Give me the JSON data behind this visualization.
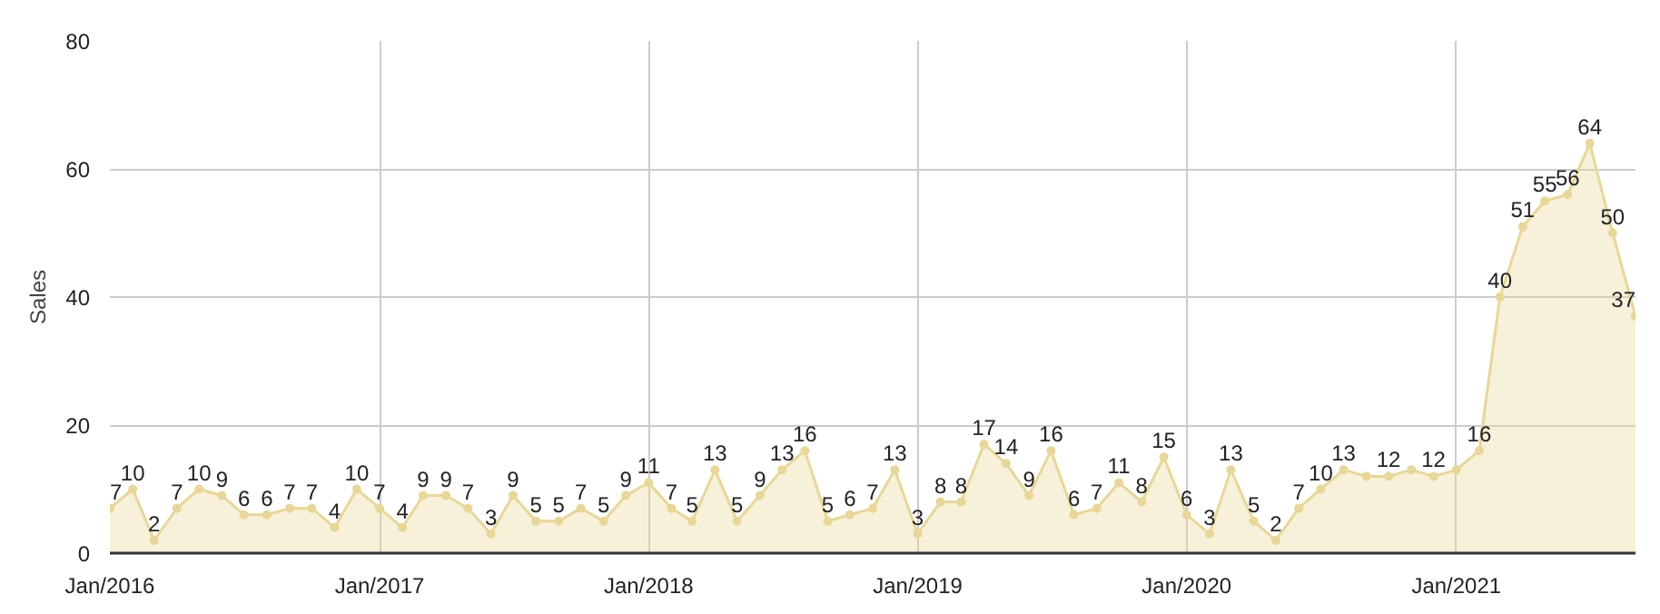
{
  "chart_data": {
    "type": "area",
    "ylabel": "Sales",
    "x": [
      "2016-01",
      "2016-02",
      "2016-03",
      "2016-04",
      "2016-05",
      "2016-06",
      "2016-07",
      "2016-08",
      "2016-09",
      "2016-10",
      "2016-11",
      "2016-12",
      "2017-01",
      "2017-02",
      "2017-03",
      "2017-04",
      "2017-05",
      "2017-06",
      "2017-07",
      "2017-08",
      "2017-09",
      "2017-10",
      "2017-11",
      "2017-12",
      "2018-01",
      "2018-02",
      "2018-03",
      "2018-04",
      "2018-05",
      "2018-06",
      "2018-07",
      "2018-08",
      "2018-09",
      "2018-10",
      "2018-11",
      "2018-12",
      "2019-01",
      "2019-02",
      "2019-03",
      "2019-04",
      "2019-05",
      "2019-06",
      "2019-07",
      "2019-08",
      "2019-09",
      "2019-10",
      "2019-11",
      "2019-12",
      "2020-01",
      "2020-02",
      "2020-03",
      "2020-04",
      "2020-05",
      "2020-06",
      "2020-07",
      "2020-08",
      "2020-09",
      "2020-10",
      "2020-11",
      "2020-12",
      "2021-01",
      "2021-02",
      "2021-03",
      "2021-04",
      "2021-05",
      "2021-06",
      "2021-07",
      "2021-08",
      "2021-09"
    ],
    "series": [
      {
        "color": "#e8d796",
        "values": [
          7,
          10,
          2,
          7,
          10,
          9,
          6,
          6,
          7,
          7,
          4,
          10,
          7,
          4,
          9,
          9,
          7,
          3,
          9,
          5,
          5,
          7,
          5,
          9,
          11,
          7,
          5,
          13,
          5,
          9,
          13,
          16,
          5,
          6,
          7,
          13,
          3,
          8,
          8,
          17,
          14,
          9,
          16,
          6,
          7,
          11,
          8,
          15,
          6,
          3,
          13,
          5,
          2,
          7,
          10,
          13,
          12,
          12,
          13,
          12,
          13,
          16,
          40,
          51,
          55,
          56,
          64,
          50,
          37
        ],
        "value_labels": [
          "7",
          "10",
          "2",
          "7",
          "10",
          "9",
          "6",
          "6",
          "7",
          "7",
          "4",
          "10",
          "7",
          "4",
          "9",
          "9",
          "7",
          "3",
          "9",
          "5",
          "5",
          "7",
          "5",
          "9",
          "11",
          "7",
          "5",
          "13",
          "5",
          "9",
          "13",
          "16",
          "5",
          "6",
          "7",
          "13",
          "3",
          "8",
          "8",
          "17",
          "14",
          "9",
          "16",
          "6",
          "7",
          "11",
          "8",
          "15",
          "6",
          "3",
          "13",
          "5",
          "2",
          "7",
          "10",
          "13",
          null,
          "12",
          null,
          "12",
          null,
          "16",
          "40",
          "51",
          "55",
          "56",
          "64",
          "50",
          "37"
        ]
      }
    ],
    "xlim": [
      "2016-01",
      "2021-09"
    ],
    "xticks": [
      {
        "value": "2016-01",
        "label": "Jan/2016"
      },
      {
        "value": "2017-01",
        "label": "Jan/2017"
      },
      {
        "value": "2018-01",
        "label": "Jan/2018"
      },
      {
        "value": "2019-01",
        "label": "Jan/2019"
      },
      {
        "value": "2020-01",
        "label": "Jan/2020"
      },
      {
        "value": "2021-01",
        "label": "Jan/2021"
      }
    ],
    "ylim": [
      0,
      80
    ],
    "yticks": [
      0,
      20,
      40,
      60,
      80
    ],
    "grid": true,
    "marker": "circle"
  }
}
